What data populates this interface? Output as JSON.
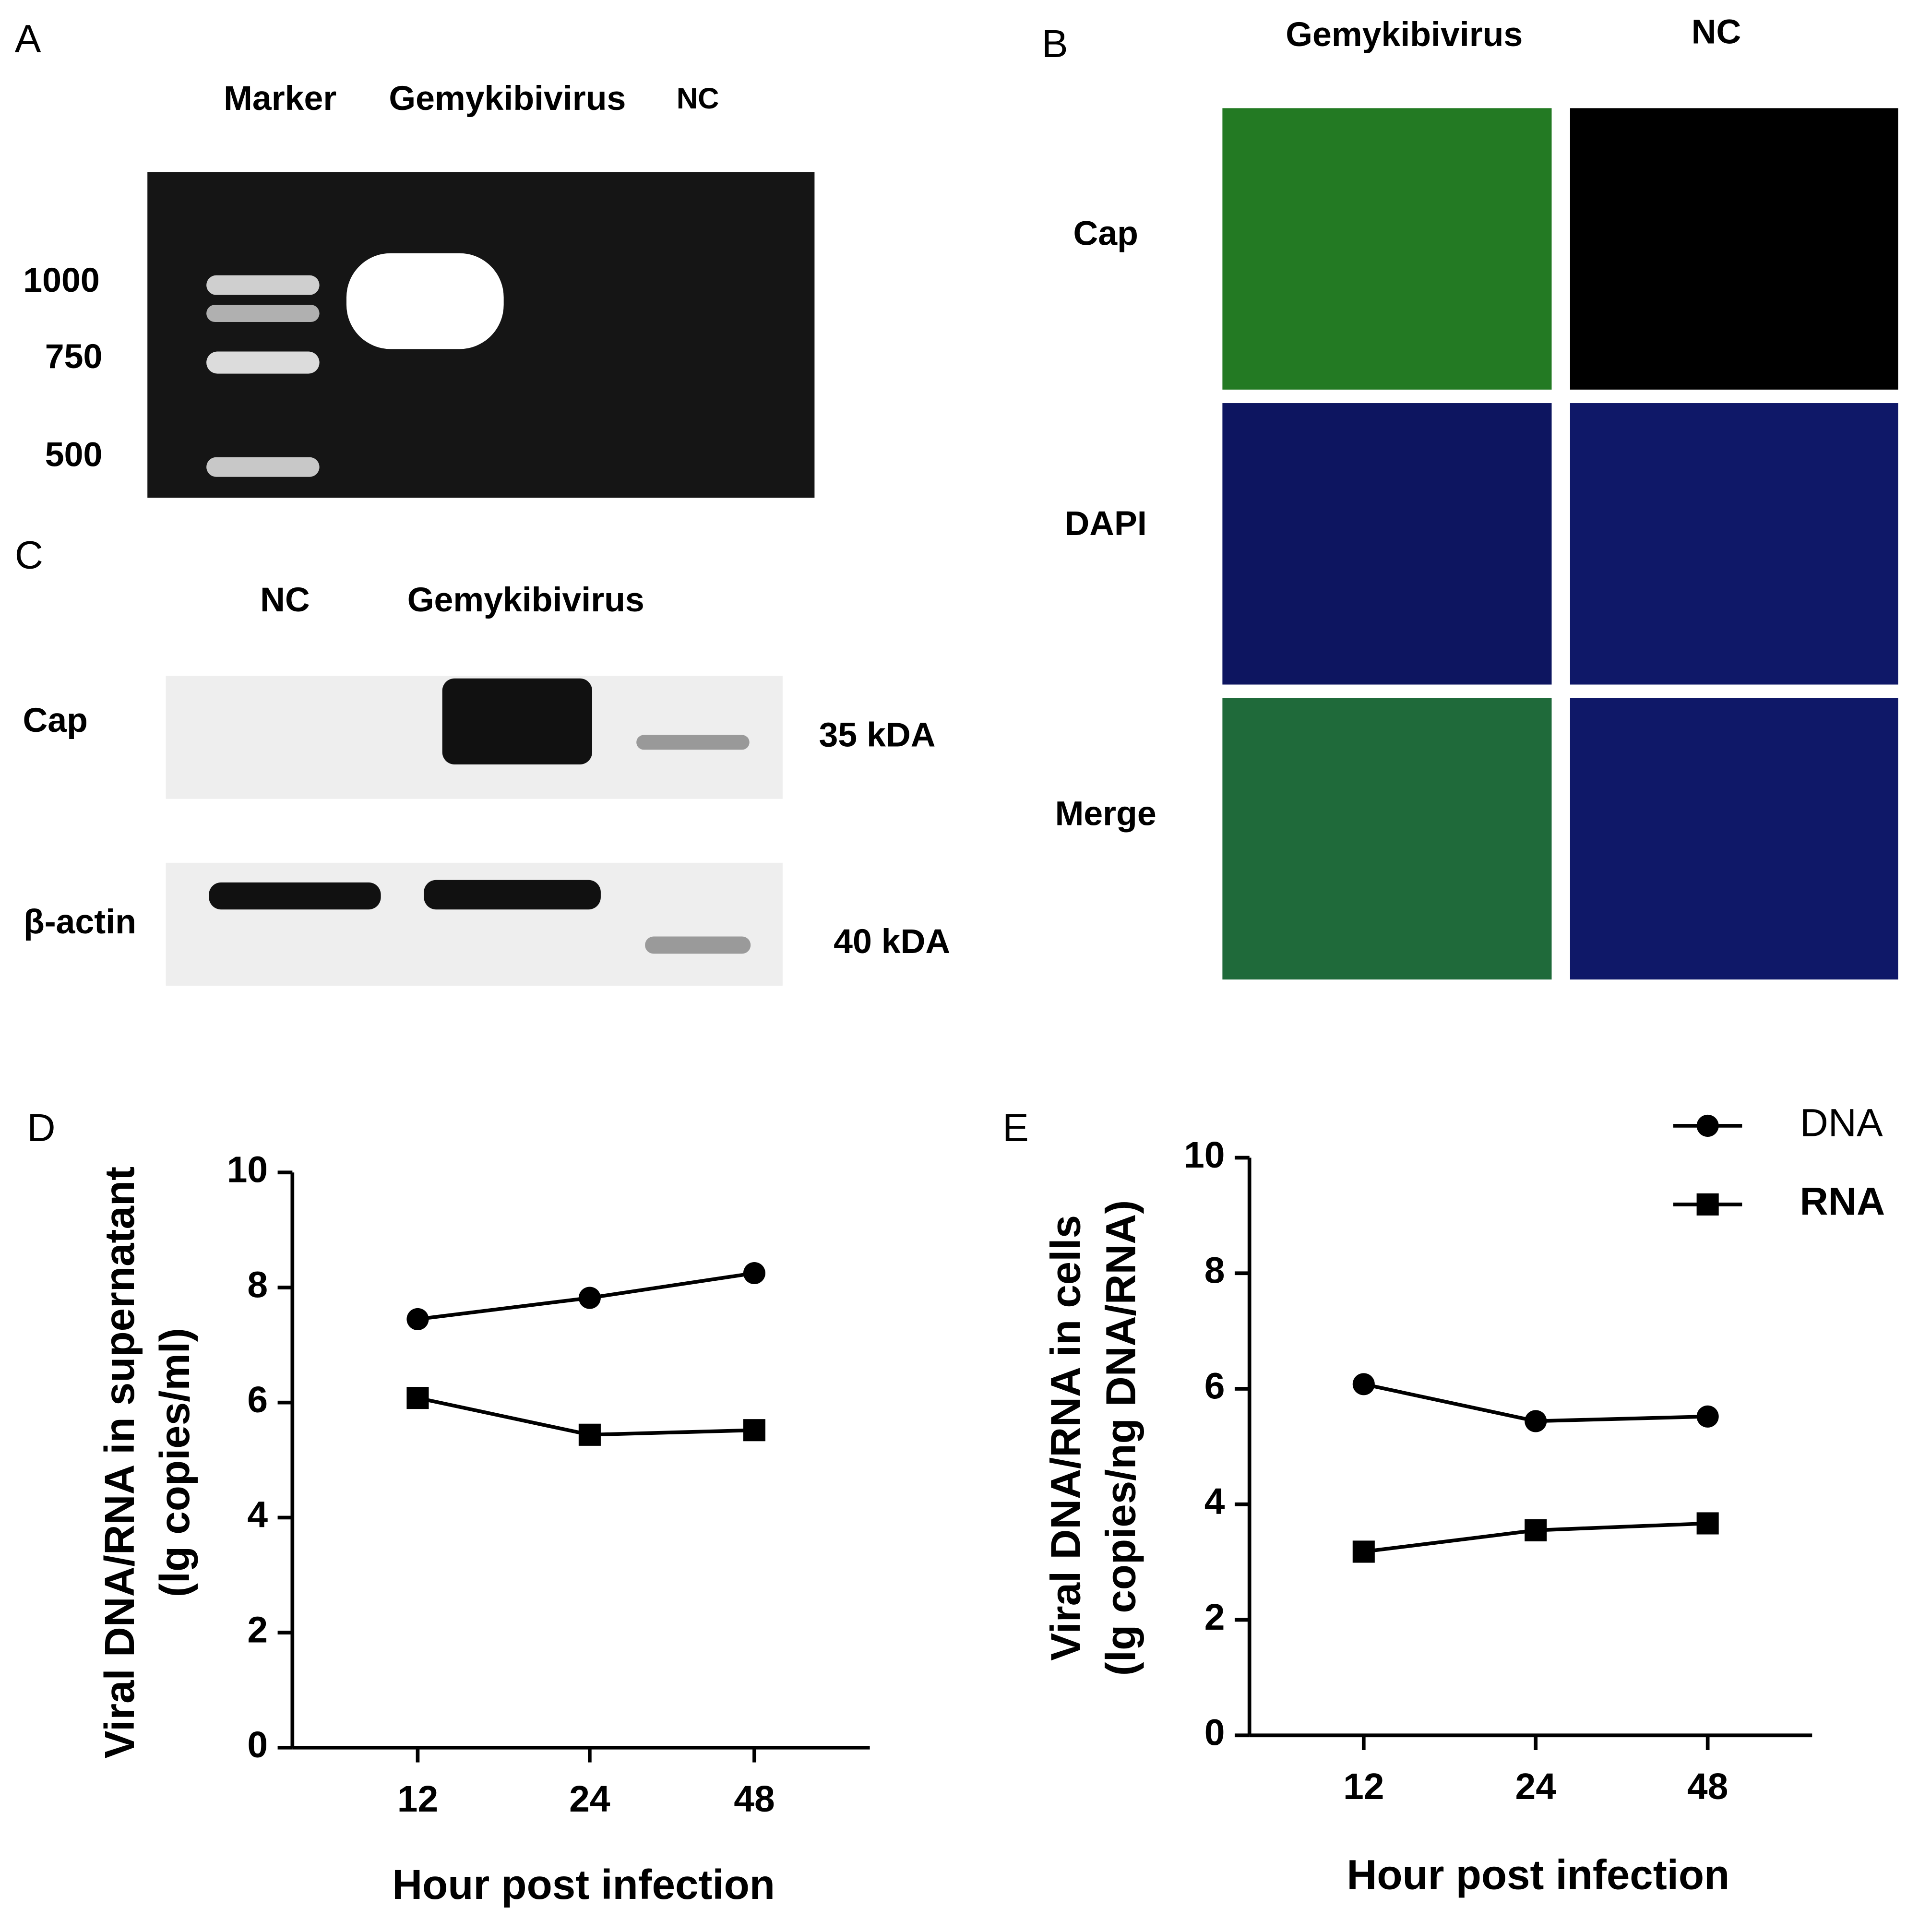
{
  "panels": {
    "A": {
      "label": "A",
      "lanes": [
        "Marker",
        "Gemykibivirus",
        "NC"
      ],
      "sizes": [
        "1000",
        "750",
        "500"
      ]
    },
    "B": {
      "label": "B",
      "columns": [
        "Gemykibivirus",
        "NC"
      ],
      "rows": [
        "Cap",
        "DAPI",
        "Merge"
      ]
    },
    "C": {
      "label": "C",
      "lanes": [
        "NC",
        "Gemykibivirus"
      ],
      "rows": [
        "Cap",
        "β-actin"
      ],
      "weights": [
        "35 kDA",
        "40 kDA"
      ]
    }
  },
  "chart_data": [
    {
      "type": "line",
      "label": "D",
      "categories": [
        "12",
        "24",
        "48"
      ],
      "series": [
        {
          "name": "DNA",
          "color": "#000000",
          "marker": "circle",
          "values": [
            7.45,
            7.82,
            8.25
          ]
        },
        {
          "name": "RNA",
          "color": "#000000",
          "marker": "square",
          "values": [
            6.08,
            5.44,
            5.52
          ]
        }
      ],
      "ylim": [
        0,
        10
      ],
      "yticks": [
        0,
        2,
        4,
        6,
        8,
        10
      ],
      "xlabel": "Hour post infection",
      "ylabel": [
        "Viral DNA/RNA in supernatant",
        "(lg copies/ml)"
      ]
    },
    {
      "type": "line",
      "label": "E",
      "categories": [
        "12",
        "24",
        "48"
      ],
      "series": [
        {
          "name": "DNA",
          "color": "#000000",
          "marker": "circle",
          "values": [
            6.08,
            5.44,
            5.52
          ]
        },
        {
          "name": "RNA",
          "color": "#000000",
          "marker": "square",
          "values": [
            3.18,
            3.55,
            3.67
          ]
        }
      ],
      "ylim": [
        0,
        10
      ],
      "yticks": [
        0,
        2,
        4,
        6,
        8,
        10
      ],
      "xlabel": "Hour post infection",
      "ylabel": [
        "Viral DNA/RNA in cells",
        "(lg copies/ng DNA/RNA)"
      ],
      "legend": "upper right"
    }
  ]
}
